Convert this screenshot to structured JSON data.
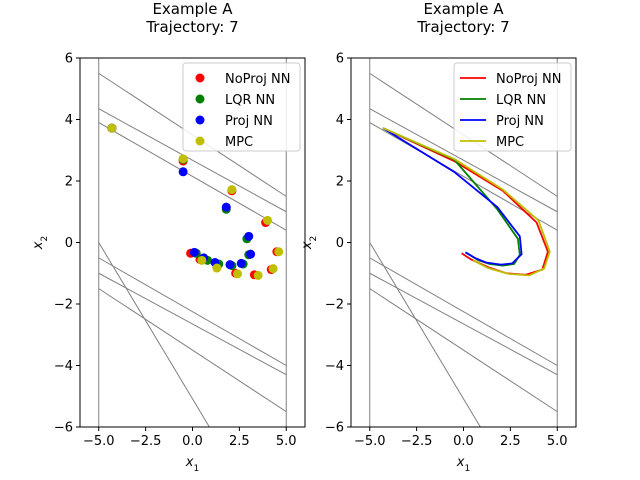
{
  "chart_data": [
    {
      "type": "scatter",
      "title": "Example A",
      "subtitle": "Trajectory: 7",
      "xlabel": "x",
      "xlabel_sub": "1",
      "ylabel": "x",
      "ylabel_sub": "2",
      "xlim": [
        -6,
        6
      ],
      "ylim": [
        -6,
        6
      ],
      "xticks": [
        -5.0,
        -2.5,
        0.0,
        2.5,
        5.0
      ],
      "xtick_labels": [
        "−5.0",
        "−2.5",
        "0.0",
        "2.5",
        "5.0"
      ],
      "yticks": [
        -6,
        -4,
        -2,
        0,
        2,
        4,
        6
      ],
      "ytick_labels": [
        "−6",
        "−4",
        "−2",
        "0",
        "2",
        "4",
        "6"
      ],
      "grid": false,
      "legend_position": "top-right",
      "constraint_color": "#808080",
      "constraint_lines": [
        [
          [
            -5,
            -6
          ],
          [
            -5,
            6
          ]
        ],
        [
          [
            5,
            -6
          ],
          [
            5,
            6
          ]
        ],
        [
          [
            -5,
            5.5
          ],
          [
            5,
            1.5
          ]
        ],
        [
          [
            -5,
            4.35
          ],
          [
            5,
            1.0
          ]
        ],
        [
          [
            -5,
            3.9
          ],
          [
            5,
            0.4
          ]
        ],
        [
          [
            -5,
            0.0
          ],
          [
            0.9,
            -6
          ]
        ],
        [
          [
            -5,
            -0.5
          ],
          [
            5,
            -4.0
          ]
        ],
        [
          [
            -5,
            -1.0
          ],
          [
            5,
            -4.3
          ]
        ],
        [
          [
            -5,
            -1.5
          ],
          [
            5,
            -5.5
          ]
        ]
      ],
      "series": [
        {
          "name": "NoProj NN",
          "color": "#ff0000",
          "x": [
            -4.3,
            -0.5,
            2.1,
            3.9,
            4.5,
            4.2,
            3.3,
            2.3,
            1.3,
            0.4,
            -0.1
          ],
          "y": [
            3.72,
            2.65,
            1.68,
            0.65,
            -0.3,
            -0.88,
            -1.05,
            -1.0,
            -0.8,
            -0.55,
            -0.35
          ]
        },
        {
          "name": "LQR NN",
          "color": "#008000",
          "x": [
            -4.3,
            -0.5,
            1.8,
            2.9,
            3.0,
            2.7,
            2.1,
            1.4,
            0.8,
            0.2
          ],
          "y": [
            3.72,
            2.7,
            1.08,
            0.12,
            -0.4,
            -0.7,
            -0.75,
            -0.7,
            -0.58,
            -0.35
          ]
        },
        {
          "name": "Proj NN",
          "color": "#0000ff",
          "x": [
            -4.3,
            -0.5,
            1.8,
            3.0,
            3.1,
            2.6,
            2.0,
            1.2,
            0.6,
            0.1
          ],
          "y": [
            3.72,
            2.3,
            1.15,
            0.2,
            -0.38,
            -0.68,
            -0.72,
            -0.65,
            -0.5,
            -0.32
          ]
        },
        {
          "name": "MPC",
          "color": "#bfbf00",
          "x": [
            -4.3,
            -0.5,
            2.1,
            4.0,
            4.6,
            4.3,
            3.5,
            2.4,
            1.3,
            0.5
          ],
          "y": [
            3.72,
            2.72,
            1.72,
            0.72,
            -0.3,
            -0.85,
            -1.07,
            -1.02,
            -0.83,
            -0.58
          ]
        }
      ]
    },
    {
      "type": "line",
      "title": "Example A",
      "subtitle": "Trajectory: 7",
      "xlabel": "x",
      "xlabel_sub": "1",
      "ylabel": "x",
      "ylabel_sub": "2",
      "xlim": [
        -6,
        6
      ],
      "ylim": [
        -6,
        6
      ],
      "xticks": [
        -5.0,
        -2.5,
        0.0,
        2.5,
        5.0
      ],
      "xtick_labels": [
        "−5.0",
        "−2.5",
        "0.0",
        "2.5",
        "5.0"
      ],
      "yticks": [
        -6,
        -4,
        -2,
        0,
        2,
        4,
        6
      ],
      "ytick_labels": [
        "−6",
        "−4",
        "−2",
        "0",
        "2",
        "4",
        "6"
      ],
      "grid": false,
      "legend_position": "top-right",
      "constraint_color": "#808080",
      "constraint_lines": [
        [
          [
            -5,
            -6
          ],
          [
            -5,
            6
          ]
        ],
        [
          [
            5,
            -6
          ],
          [
            5,
            6
          ]
        ],
        [
          [
            -5,
            5.5
          ],
          [
            5,
            1.5
          ]
        ],
        [
          [
            -5,
            4.35
          ],
          [
            5,
            1.0
          ]
        ],
        [
          [
            -5,
            3.9
          ],
          [
            5,
            0.4
          ]
        ],
        [
          [
            -5,
            0.0
          ],
          [
            0.9,
            -6
          ]
        ],
        [
          [
            -5,
            -0.5
          ],
          [
            5,
            -4.0
          ]
        ],
        [
          [
            -5,
            -1.0
          ],
          [
            5,
            -4.3
          ]
        ],
        [
          [
            -5,
            -1.5
          ],
          [
            5,
            -5.5
          ]
        ]
      ],
      "series": [
        {
          "name": "NoProj NN",
          "color": "#ff0000",
          "x": [
            -4.3,
            -0.5,
            2.1,
            3.9,
            4.5,
            4.2,
            3.3,
            2.3,
            1.3,
            0.4,
            -0.1
          ],
          "y": [
            3.72,
            2.65,
            1.68,
            0.65,
            -0.3,
            -0.88,
            -1.05,
            -1.0,
            -0.8,
            -0.55,
            -0.35
          ]
        },
        {
          "name": "LQR NN",
          "color": "#008000",
          "x": [
            -4.3,
            -0.5,
            1.8,
            2.9,
            3.0,
            2.7,
            2.1,
            1.4,
            0.8,
            0.2
          ],
          "y": [
            3.72,
            2.7,
            1.08,
            0.12,
            -0.4,
            -0.7,
            -0.75,
            -0.7,
            -0.58,
            -0.35
          ]
        },
        {
          "name": "Proj NN",
          "color": "#0000ff",
          "x": [
            -4.3,
            -0.5,
            1.8,
            3.0,
            3.1,
            2.6,
            2.0,
            1.2,
            0.6,
            0.1
          ],
          "y": [
            3.72,
            2.3,
            1.15,
            0.2,
            -0.38,
            -0.68,
            -0.72,
            -0.65,
            -0.5,
            -0.32
          ]
        },
        {
          "name": "MPC",
          "color": "#bfbf00",
          "x": [
            -4.3,
            -0.5,
            2.1,
            4.0,
            4.6,
            4.3,
            3.5,
            2.4,
            1.3,
            0.5
          ],
          "y": [
            3.72,
            2.72,
            1.72,
            0.72,
            -0.3,
            -0.85,
            -1.07,
            -1.02,
            -0.83,
            -0.58
          ]
        }
      ]
    }
  ]
}
